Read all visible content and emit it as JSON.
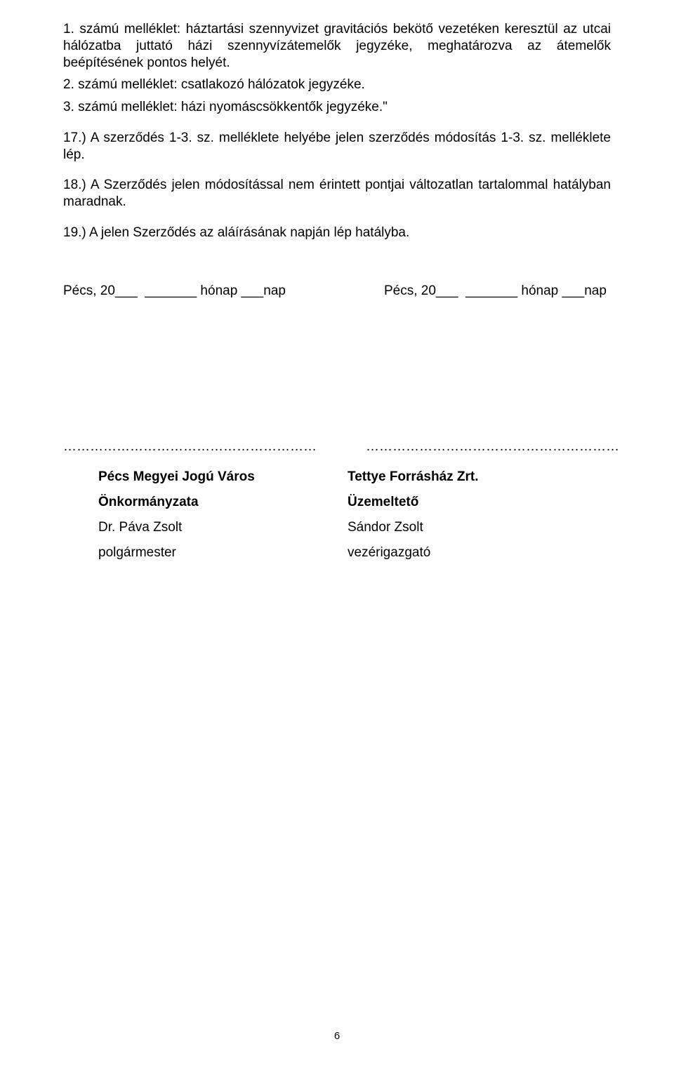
{
  "paragraphs": {
    "p1": "1. számú melléklet: háztartási szennyvizet gravitációs bekötő vezetéken keresztül az utcai hálózatba juttató házi szennyvízátemelők jegyzéke, meghatározva az átemelők beépítésének pontos helyét.",
    "p2": "2. számú melléklet: csatlakozó hálózatok jegyzéke.",
    "p3": "3. számú melléklet: házi nyomáscsökkentők jegyzéke.\"",
    "p4": "17.) A szerződés 1-3. sz. melléklete helyébe jelen szerződés módosítás 1-3. sz. melléklete lép.",
    "p5": "18.) A Szerződés jelen módosítással nem érintett pontjai változatlan tartalommal hatályban maradnak.",
    "p6": "19.) A jelen Szerződés az aláírásának napján lép hatályba."
  },
  "dates": {
    "left": "Pécs, 20___  _______ hónap ___nap",
    "right": "Pécs, 20___  _______ hónap ___nap"
  },
  "dottedLines": {
    "left": "…………………………………………………",
    "right": "…………………………………………………"
  },
  "signatures": {
    "left": {
      "line1": "Pécs Megyei Jogú Város",
      "line2": "Önkormányzata",
      "line3": "Dr. Páva Zsolt",
      "line4": "polgármester"
    },
    "right": {
      "line1": "Tettye Forrásház Zrt.",
      "line2": "Üzemeltető",
      "line3": "Sándor Zsolt",
      "line4": "vezérigazgató"
    }
  },
  "pageNumber": "6"
}
